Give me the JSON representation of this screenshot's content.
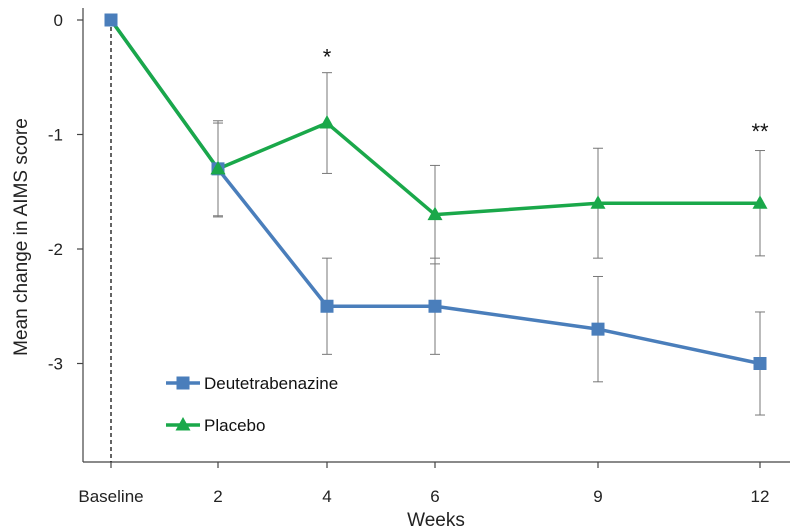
{
  "chart_data": {
    "type": "line",
    "title": "",
    "xlabel": "Weeks",
    "ylabel": "Mean change in AIMS score",
    "categories": [
      "Baseline",
      "2",
      "4",
      "6",
      "9",
      "12"
    ],
    "x": [
      0,
      2,
      4,
      6,
      9,
      12
    ],
    "ylim": [
      -3.85,
      0
    ],
    "yticks": [
      "0",
      "-1",
      "-2",
      "-3"
    ],
    "ytick_values": [
      0,
      -1,
      -2,
      -3
    ],
    "grid": false,
    "legend_position": "bottom-left",
    "baseline_marker": "dashed vertical line at Baseline",
    "series": [
      {
        "name": "Deutetrabenazine",
        "marker": "square",
        "color": "#4a7ebb",
        "values": [
          0,
          -1.3,
          -2.5,
          -2.5,
          -2.7,
          -3.0
        ],
        "error_upper": [
          0,
          -0.9,
          -2.08,
          -2.08,
          -2.24,
          -2.55
        ],
        "error_lower": [
          0,
          -1.72,
          -2.92,
          -2.92,
          -3.16,
          -3.45
        ]
      },
      {
        "name": "Placebo",
        "marker": "triangle",
        "color": "#1aa84a",
        "values": [
          0,
          -1.3,
          -0.9,
          -1.7,
          -1.6,
          -1.6
        ],
        "error_upper": [
          0,
          -0.88,
          -0.46,
          -1.27,
          -1.12,
          -1.14
        ],
        "error_lower": [
          0,
          -1.71,
          -1.34,
          -2.13,
          -2.08,
          -2.06
        ]
      }
    ],
    "annotations": [
      {
        "text": "*",
        "x": 4,
        "y": -0.32
      },
      {
        "text": "**",
        "x": 12,
        "y": -0.97
      }
    ]
  }
}
